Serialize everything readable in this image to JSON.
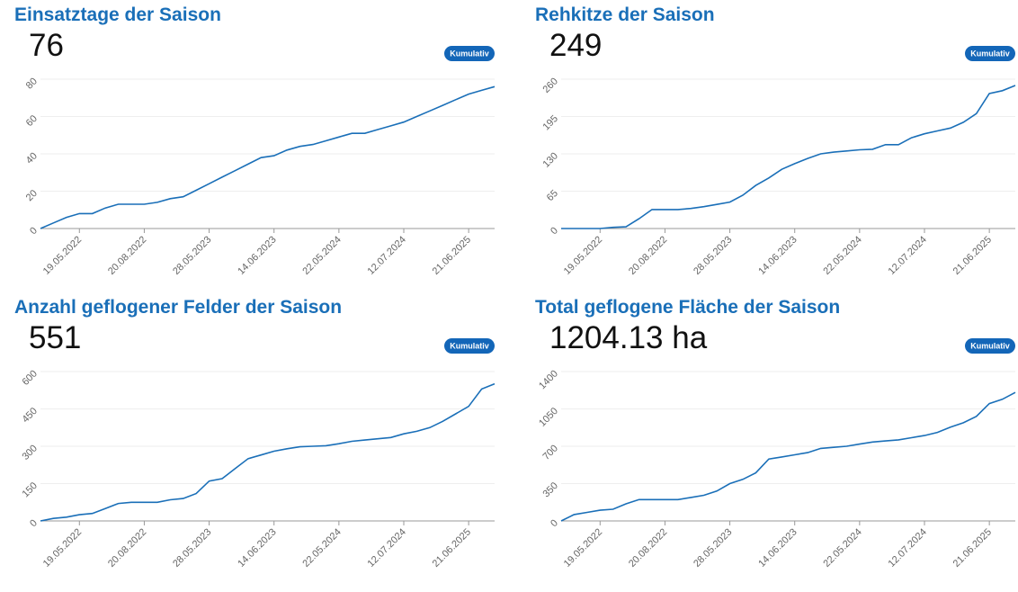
{
  "chart_data": [
    {
      "type": "line",
      "title": "Einsatztage der Saison",
      "kpi": "76",
      "badge": "Kumulativ",
      "color": "#1a6fb8",
      "categories": [
        null,
        null,
        null,
        "19.05.2022",
        null,
        null,
        null,
        null,
        "20.08.2022",
        null,
        null,
        null,
        null,
        "28.05.2023",
        null,
        null,
        null,
        null,
        "14.06.2023",
        null,
        null,
        null,
        null,
        "22.05.2024",
        null,
        null,
        null,
        null,
        "12.07.2024",
        null,
        null,
        null,
        null,
        "21.06.2025",
        null,
        null
      ],
      "values": [
        0,
        3,
        6,
        8,
        8,
        11,
        13,
        13,
        13,
        14,
        16,
        17,
        20.5,
        24,
        27.5,
        31,
        34.5,
        38,
        39,
        42,
        44,
        45,
        47,
        49,
        51,
        51,
        53,
        55,
        57,
        60,
        63,
        66,
        69,
        72,
        74,
        76
      ],
      "ylim": [
        0,
        80
      ],
      "yticks": [
        0,
        20,
        40,
        60,
        80
      ],
      "grid": true
    },
    {
      "type": "line",
      "title": "Rehkitze der Saison",
      "kpi": "249",
      "badge": "Kumulativ",
      "color": "#1a6fb8",
      "categories": [
        null,
        null,
        null,
        "19.05.2022",
        null,
        null,
        null,
        null,
        "20.08.2022",
        null,
        null,
        null,
        null,
        "28.05.2023",
        null,
        null,
        null,
        null,
        "14.06.2023",
        null,
        null,
        null,
        null,
        "22.05.2024",
        null,
        null,
        null,
        null,
        "12.07.2024",
        null,
        null,
        null,
        null,
        "21.06.2025",
        null,
        null
      ],
      "values": [
        0,
        0,
        0,
        0,
        2,
        3,
        17,
        33,
        33,
        33,
        35,
        38,
        42,
        46,
        58,
        75,
        88,
        103,
        113,
        122,
        130,
        133,
        135,
        137,
        138,
        146,
        146,
        158,
        165,
        170,
        175,
        185,
        200,
        235,
        240,
        249
      ],
      "ylim": [
        0,
        260
      ],
      "yticks": [
        0,
        65,
        130,
        195,
        260
      ],
      "grid": true
    },
    {
      "type": "line",
      "title": "Anzahl geflogener Felder der Saison",
      "kpi": "551",
      "badge": "Kumulativ",
      "color": "#1a6fb8",
      "categories": [
        null,
        null,
        null,
        "19.05.2022",
        null,
        null,
        null,
        null,
        "20.08.2022",
        null,
        null,
        null,
        null,
        "28.05.2023",
        null,
        null,
        null,
        null,
        "14.06.2023",
        null,
        null,
        null,
        null,
        "22.05.2024",
        null,
        null,
        null,
        null,
        "12.07.2024",
        null,
        null,
        null,
        null,
        "21.06.2025",
        null,
        null
      ],
      "values": [
        0,
        10,
        15,
        25,
        30,
        50,
        70,
        75,
        75,
        75,
        85,
        90,
        110,
        160,
        170,
        210,
        250,
        265,
        280,
        290,
        298,
        300,
        302,
        310,
        320,
        325,
        330,
        335,
        350,
        360,
        375,
        400,
        430,
        460,
        530,
        551
      ],
      "ylim": [
        0,
        600
      ],
      "yticks": [
        0,
        150,
        300,
        450,
        600
      ],
      "grid": true
    },
    {
      "type": "line",
      "title": "Total geflogene Fläche der Saison",
      "kpi": "1204.13 ha",
      "badge": "Kumulativ",
      "color": "#1a6fb8",
      "categories": [
        null,
        null,
        null,
        "19.05.2022",
        null,
        null,
        null,
        null,
        "20.08.2022",
        null,
        null,
        null,
        null,
        "28.05.2023",
        null,
        null,
        null,
        null,
        "14.06.2023",
        null,
        null,
        null,
        null,
        "22.05.2024",
        null,
        null,
        null,
        null,
        "12.07.2024",
        null,
        null,
        null,
        null,
        "21.06.2025",
        null,
        null
      ],
      "values": [
        0,
        60,
        80,
        100,
        110,
        160,
        200,
        200,
        200,
        200,
        220,
        240,
        280,
        350,
        390,
        450,
        580,
        600,
        620,
        640,
        680,
        690,
        700,
        720,
        740,
        750,
        760,
        780,
        800,
        830,
        880,
        920,
        980,
        1100,
        1140,
        1204.13
      ],
      "ylim": [
        0,
        1400
      ],
      "yticks": [
        0,
        350,
        700,
        1050,
        1400
      ],
      "grid": true
    }
  ]
}
